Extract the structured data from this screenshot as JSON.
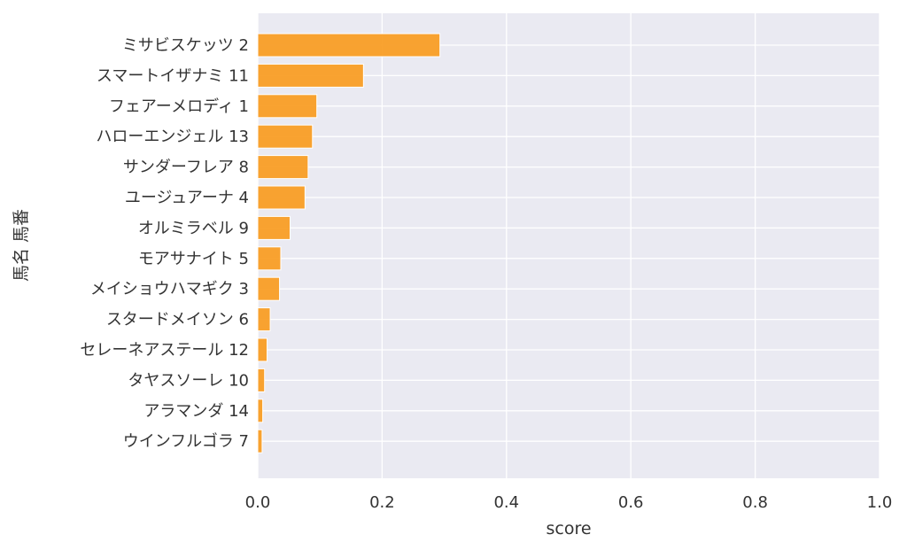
{
  "chart_data": {
    "type": "bar",
    "orientation": "horizontal",
    "xlabel": "score",
    "ylabel": "馬名 馬番",
    "xlim": [
      0,
      1.0
    ],
    "xticks": [
      "0.0",
      "0.2",
      "0.4",
      "0.6",
      "0.8",
      "1.0"
    ],
    "grid": true,
    "bar_color": "#f99b20",
    "background_color": "#eaeaf2",
    "categories": [
      "ミサビスケッツ 2",
      "スマートイザナミ 11",
      "フェアーメロディ 1",
      "ハローエンジェル 13",
      "サンダーフレア 8",
      "ユージュアーナ 4",
      "オルミラベル 9",
      "モアサナイト 5",
      "メイショウハマギク 3",
      "スタードメイソン 6",
      "セレーネアステール 12",
      "タヤスソーレ 10",
      "アラマンダ 14",
      "ウインフルゴラ 7"
    ],
    "values": [
      0.293,
      0.17,
      0.095,
      0.088,
      0.081,
      0.076,
      0.052,
      0.037,
      0.035,
      0.02,
      0.015,
      0.011,
      0.008,
      0.007
    ]
  }
}
